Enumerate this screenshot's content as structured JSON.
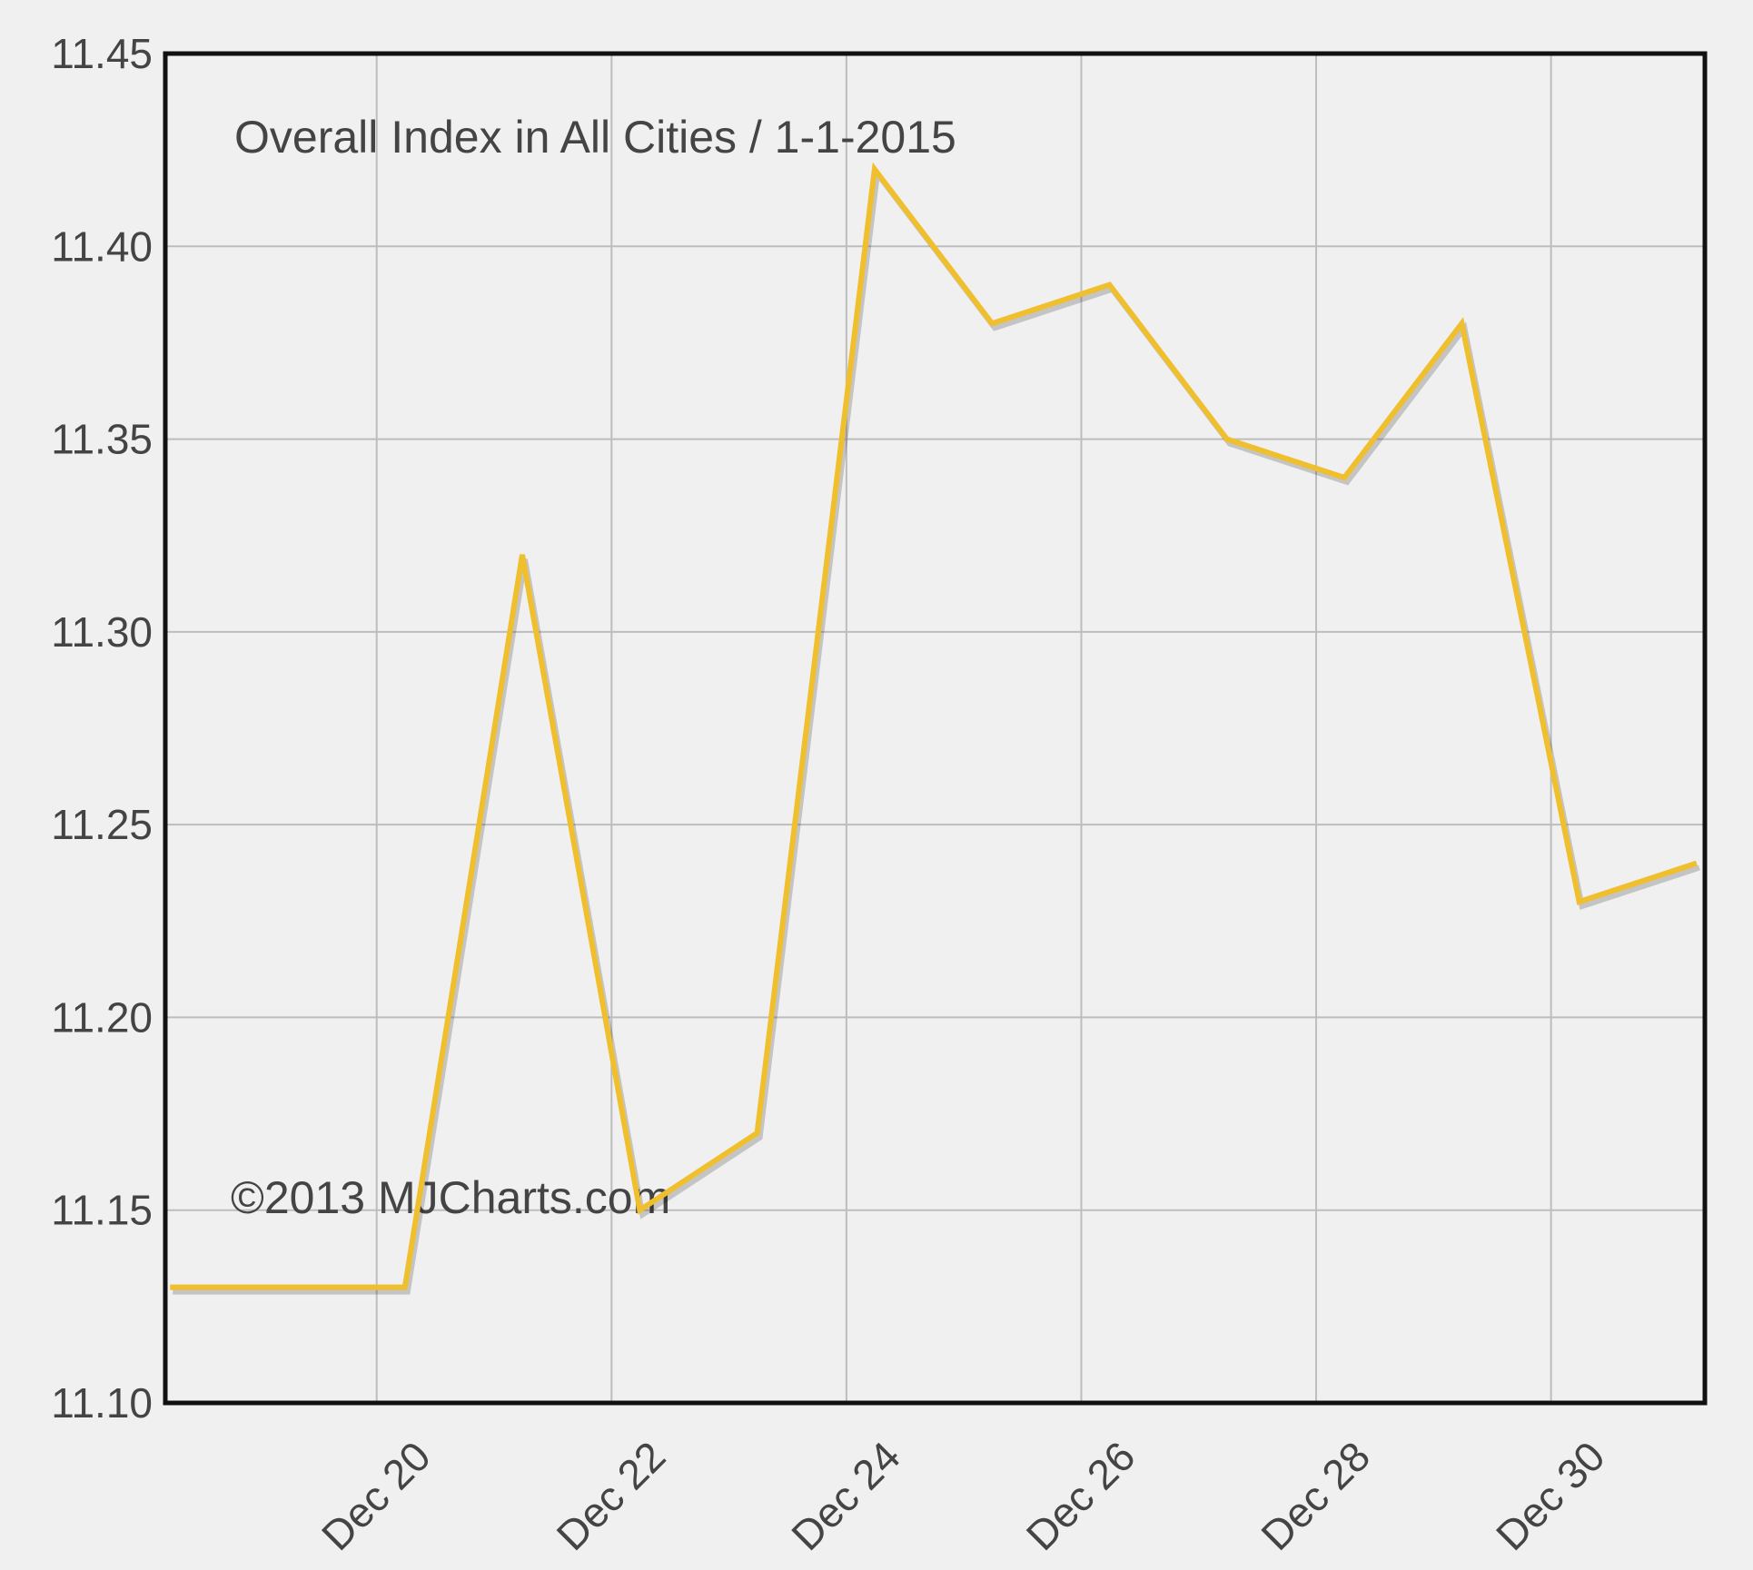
{
  "chart_data": {
    "type": "line",
    "title": "Overall Index in All Cities / 1-1-2015",
    "credit": "©2013 MJCharts.com",
    "x": [
      18.24,
      20.24,
      21.24,
      22.24,
      23.24,
      24.24,
      25.24,
      26.24,
      27.24,
      28.24,
      29.24,
      30.24,
      31.24
    ],
    "values": [
      11.13,
      11.13,
      11.32,
      11.15,
      11.17,
      11.42,
      11.38,
      11.39,
      11.35,
      11.34,
      11.38,
      11.23,
      11.24
    ],
    "color": "#f0bf2e",
    "xlim": [
      18.2,
      31.31
    ],
    "xticks": [
      {
        "value": 20,
        "label": "Dec 20"
      },
      {
        "value": 22,
        "label": "Dec 22"
      },
      {
        "value": 24,
        "label": "Dec 24"
      },
      {
        "value": 26,
        "label": "Dec 26"
      },
      {
        "value": 28,
        "label": "Dec 28"
      },
      {
        "value": 30,
        "label": "Dec 30"
      }
    ],
    "ylim": [
      11.1,
      11.45
    ],
    "yticks": [
      {
        "value": 11.1,
        "label": "11.10"
      },
      {
        "value": 11.15,
        "label": "11.15"
      },
      {
        "value": 11.2,
        "label": "11.20"
      },
      {
        "value": 11.25,
        "label": "11.25"
      },
      {
        "value": 11.3,
        "label": "11.30"
      },
      {
        "value": 11.35,
        "label": "11.35"
      },
      {
        "value": 11.4,
        "label": "11.40"
      },
      {
        "value": 11.45,
        "label": "11.45"
      }
    ],
    "grid": true
  }
}
